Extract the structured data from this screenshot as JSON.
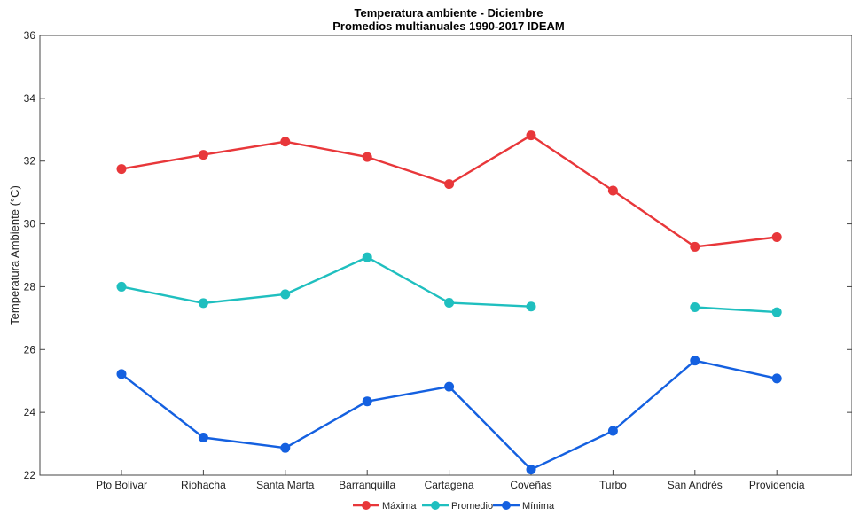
{
  "chart_data": {
    "type": "line",
    "title": "Temperatura ambiente - Diciembre",
    "subtitle": "Promedios multianuales 1990-2017 IDEAM",
    "xlabel": "",
    "ylabel": "Temperatura Ambiente (°C)",
    "ylim": [
      22,
      36
    ],
    "yticks": [
      "22",
      "24",
      "26",
      "28",
      "30",
      "32",
      "34",
      "36"
    ],
    "categories": [
      "Pto Bolivar",
      "Riohacha",
      "Santa Marta",
      "Barranquilla",
      "Cartagena",
      "Coveñas",
      "Turbo",
      "San Andrés",
      "Providencia"
    ],
    "grid": false,
    "legend_position": "bottom",
    "series": [
      {
        "name": "Máxima",
        "color": "#e8373a",
        "values": [
          31.75,
          32.2,
          32.62,
          32.13,
          31.27,
          32.82,
          31.06,
          29.27,
          29.58
        ]
      },
      {
        "name": "Promedio",
        "color": "#1fbfbf",
        "values": [
          28.0,
          27.48,
          27.76,
          28.94,
          27.49,
          27.37,
          null,
          27.35,
          27.19
        ]
      },
      {
        "name": "Mínima",
        "color": "#1460e0",
        "values": [
          25.22,
          23.2,
          22.87,
          24.35,
          24.82,
          22.18,
          23.41,
          25.65,
          25.08
        ]
      }
    ]
  }
}
